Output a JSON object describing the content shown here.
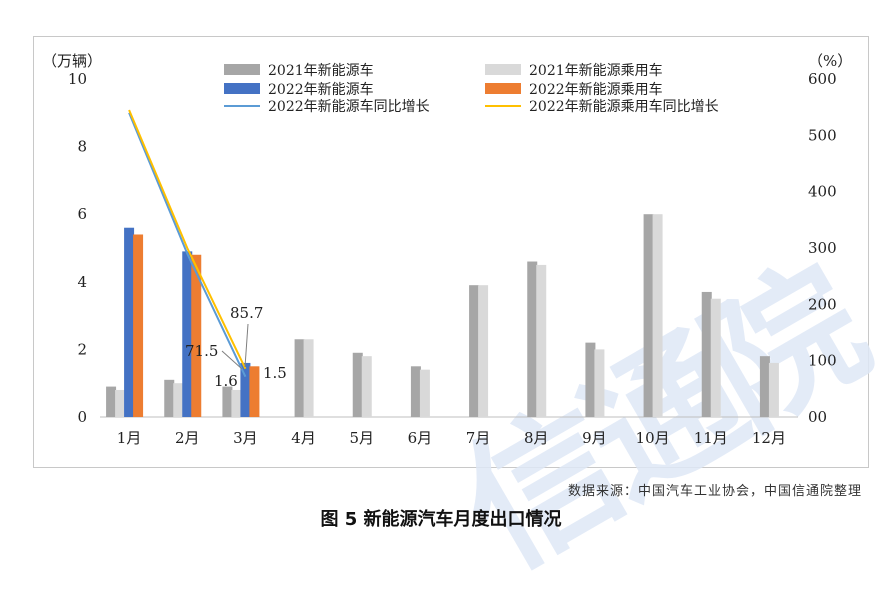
{
  "chart_data": {
    "type": "bar",
    "categories": [
      "1月",
      "2月",
      "3月",
      "4月",
      "5月",
      "6月",
      "7月",
      "8月",
      "9月",
      "10月",
      "11月",
      "12月"
    ],
    "y_left_label": "（万辆）",
    "y_right_label": "（%）",
    "y_left_ticks": [
      "0",
      "2",
      "4",
      "6",
      "8",
      "10"
    ],
    "y_right_ticks": [
      "00",
      "100",
      "200",
      "300",
      "400",
      "500",
      "600"
    ],
    "ylim": [
      0,
      10
    ],
    "y2lim": [
      0,
      600
    ],
    "legend": {
      "position": "top"
    },
    "series": [
      {
        "name": "2021年新能源车",
        "kind": "bar",
        "color": "#a6a6a6",
        "values": [
          0.9,
          1.1,
          0.9,
          2.3,
          1.9,
          1.5,
          3.9,
          4.6,
          2.2,
          6.0,
          3.7,
          1.8
        ]
      },
      {
        "name": "2021年新能源乘用车",
        "kind": "bar",
        "color": "#d9d9d9",
        "values": [
          0.8,
          1.0,
          0.8,
          2.3,
          1.8,
          1.4,
          3.9,
          4.5,
          2.0,
          6.0,
          3.5,
          1.6
        ]
      },
      {
        "name": "2022年新能源车",
        "kind": "bar",
        "color": "#4472c4",
        "values": [
          5.6,
          4.9,
          1.6,
          null,
          null,
          null,
          null,
          null,
          null,
          null,
          null,
          null
        ]
      },
      {
        "name": "2022年新能源乘用车",
        "kind": "bar",
        "color": "#ed7d31",
        "values": [
          5.4,
          4.8,
          1.5,
          null,
          null,
          null,
          null,
          null,
          null,
          null,
          null,
          null
        ]
      },
      {
        "name": "2022年新能源车同比增长",
        "kind": "line",
        "axis": "right",
        "color": "#5b9bd5",
        "values": [
          540,
          290,
          71.5,
          null,
          null,
          null,
          null,
          null,
          null,
          null,
          null,
          null
        ]
      },
      {
        "name": "2022年新能源乘用车同比增长",
        "kind": "line",
        "axis": "right",
        "color": "#ffc000",
        "values": [
          545,
          300,
          85.7,
          null,
          null,
          null,
          null,
          null,
          null,
          null,
          null,
          null
        ]
      }
    ],
    "annotations": [
      {
        "text": "85.7",
        "series": 5,
        "index": 2
      },
      {
        "text": "71.5",
        "series": 4,
        "index": 2
      },
      {
        "text": "1.6",
        "series": 2,
        "index": 2
      },
      {
        "text": "1.5",
        "series": 3,
        "index": 2
      }
    ]
  },
  "source_text": "数据来源：中国汽车工业协会，中国信通院整理",
  "caption": "图 5  新能源汽车月度出口情况",
  "watermark": "信通院"
}
